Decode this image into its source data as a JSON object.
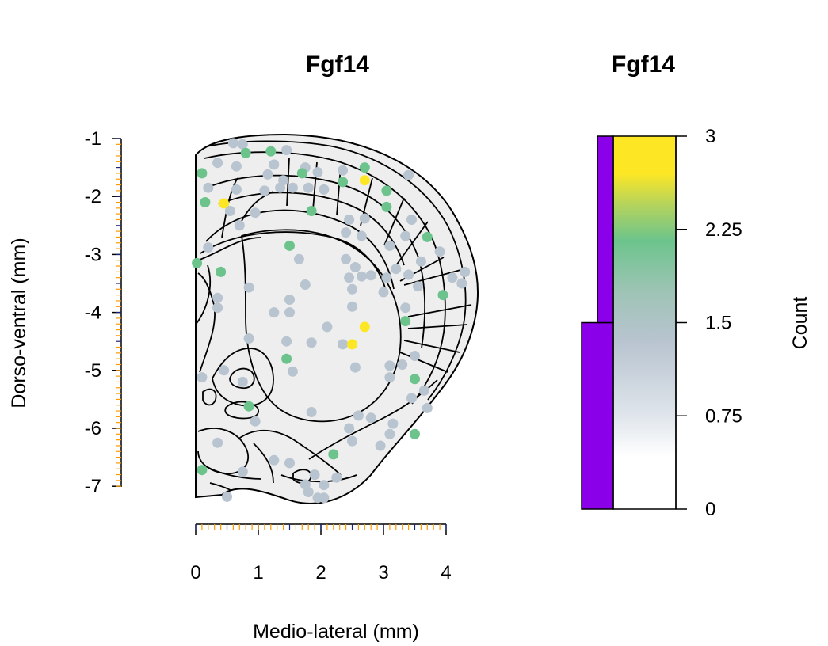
{
  "chart_data": [
    {
      "type": "scatter",
      "title": "Fgf14",
      "xlabel": "Medio-lateral (mm)",
      "ylabel": "Dorso-ventral (mm)",
      "xlim": [
        0,
        4
      ],
      "ylim": [
        -7.1,
        -1
      ],
      "x_ticks": [
        0,
        1,
        2,
        3,
        4
      ],
      "y_ticks": [
        -1,
        -2,
        -3,
        -4,
        -5,
        -6,
        -7
      ],
      "colors": {
        "count_0_to_1": "#b8c4d0",
        "count_2": "#6cc48c",
        "count_3": "#fde725",
        "section_fill": "#eeeeee"
      },
      "points": [
        {
          "x": 0.6,
          "y": -1.08,
          "count": 1
        },
        {
          "x": 0.75,
          "y": -1.1,
          "count": 1
        },
        {
          "x": 0.8,
          "y": -1.25,
          "count": 2
        },
        {
          "x": 1.2,
          "y": -1.22,
          "count": 2
        },
        {
          "x": 1.45,
          "y": -1.2,
          "count": 1
        },
        {
          "x": 0.35,
          "y": -1.42,
          "count": 1
        },
        {
          "x": 0.65,
          "y": -1.48,
          "count": 1
        },
        {
          "x": 1.25,
          "y": -1.45,
          "count": 1
        },
        {
          "x": 1.75,
          "y": -1.5,
          "count": 1
        },
        {
          "x": 1.95,
          "y": -1.58,
          "count": 1
        },
        {
          "x": 1.7,
          "y": -1.6,
          "count": 2
        },
        {
          "x": 0.1,
          "y": -1.6,
          "count": 2
        },
        {
          "x": 1.15,
          "y": -1.62,
          "count": 1
        },
        {
          "x": 1.4,
          "y": -1.72,
          "count": 1
        },
        {
          "x": 2.35,
          "y": -1.55,
          "count": 1
        },
        {
          "x": 2.7,
          "y": -1.5,
          "count": 2
        },
        {
          "x": 2.35,
          "y": -1.75,
          "count": 2
        },
        {
          "x": 2.7,
          "y": -1.72,
          "count": 3
        },
        {
          "x": 3.4,
          "y": -1.63,
          "count": 1
        },
        {
          "x": 0.2,
          "y": -1.85,
          "count": 1
        },
        {
          "x": 0.65,
          "y": -1.88,
          "count": 1
        },
        {
          "x": 1.1,
          "y": -1.9,
          "count": 1
        },
        {
          "x": 1.35,
          "y": -1.85,
          "count": 1
        },
        {
          "x": 1.55,
          "y": -1.85,
          "count": 1
        },
        {
          "x": 1.8,
          "y": -1.85,
          "count": 1
        },
        {
          "x": 2.05,
          "y": -1.88,
          "count": 1
        },
        {
          "x": 3.05,
          "y": -1.9,
          "count": 2
        },
        {
          "x": 0.15,
          "y": -2.1,
          "count": 2
        },
        {
          "x": 0.45,
          "y": -2.12,
          "count": 3
        },
        {
          "x": 1.85,
          "y": -2.25,
          "count": 2
        },
        {
          "x": 3.05,
          "y": -2.18,
          "count": 2
        },
        {
          "x": 0.55,
          "y": -2.25,
          "count": 1
        },
        {
          "x": 0.95,
          "y": -2.28,
          "count": 1
        },
        {
          "x": 2.45,
          "y": -2.4,
          "count": 1
        },
        {
          "x": 2.7,
          "y": -2.38,
          "count": 1
        },
        {
          "x": 3.45,
          "y": -2.4,
          "count": 1
        },
        {
          "x": 0.7,
          "y": -2.5,
          "count": 1
        },
        {
          "x": 2.4,
          "y": -2.62,
          "count": 1
        },
        {
          "x": 2.65,
          "y": -2.68,
          "count": 1
        },
        {
          "x": 3.35,
          "y": -2.68,
          "count": 1
        },
        {
          "x": 3.7,
          "y": -2.7,
          "count": 2
        },
        {
          "x": 3.1,
          "y": -2.85,
          "count": 1
        },
        {
          "x": 1.5,
          "y": -2.85,
          "count": 2
        },
        {
          "x": 0.2,
          "y": -2.88,
          "count": 1
        },
        {
          "x": 3.9,
          "y": -2.95,
          "count": 1
        },
        {
          "x": 1.65,
          "y": -3.08,
          "count": 1
        },
        {
          "x": 2.4,
          "y": -3.08,
          "count": 1
        },
        {
          "x": 3.6,
          "y": -3.12,
          "count": 1
        },
        {
          "x": 0.02,
          "y": -3.15,
          "count": 2
        },
        {
          "x": 0.4,
          "y": -3.3,
          "count": 2
        },
        {
          "x": 2.55,
          "y": -3.22,
          "count": 1
        },
        {
          "x": 3.2,
          "y": -3.25,
          "count": 1
        },
        {
          "x": 4.3,
          "y": -3.3,
          "count": 1
        },
        {
          "x": 2.45,
          "y": -3.4,
          "count": 1
        },
        {
          "x": 2.65,
          "y": -3.38,
          "count": 1
        },
        {
          "x": 2.8,
          "y": -3.36,
          "count": 1
        },
        {
          "x": 3.05,
          "y": -3.4,
          "count": 1
        },
        {
          "x": 3.4,
          "y": -3.35,
          "count": 1
        },
        {
          "x": 4.1,
          "y": -3.4,
          "count": 1
        },
        {
          "x": 4.25,
          "y": -3.5,
          "count": 1
        },
        {
          "x": 1.75,
          "y": -3.52,
          "count": 1
        },
        {
          "x": 0.85,
          "y": -3.57,
          "count": 1
        },
        {
          "x": 2.5,
          "y": -3.6,
          "count": 1
        },
        {
          "x": 3.55,
          "y": -3.55,
          "count": 1
        },
        {
          "x": 3.0,
          "y": -3.65,
          "count": 1
        },
        {
          "x": 3.95,
          "y": -3.7,
          "count": 2
        },
        {
          "x": 0.35,
          "y": -3.75,
          "count": 1
        },
        {
          "x": 1.5,
          "y": -3.78,
          "count": 1
        },
        {
          "x": 0.35,
          "y": -3.92,
          "count": 1
        },
        {
          "x": 2.5,
          "y": -3.9,
          "count": 1
        },
        {
          "x": 3.35,
          "y": -3.92,
          "count": 1
        },
        {
          "x": 1.25,
          "y": -4.0,
          "count": 1
        },
        {
          "x": 1.5,
          "y": -4.0,
          "count": 1
        },
        {
          "x": 3.35,
          "y": -4.15,
          "count": 2
        },
        {
          "x": 2.7,
          "y": -4.25,
          "count": 3
        },
        {
          "x": 2.1,
          "y": -4.25,
          "count": 1
        },
        {
          "x": 0.85,
          "y": -4.45,
          "count": 1
        },
        {
          "x": 1.45,
          "y": -4.5,
          "count": 1
        },
        {
          "x": 1.85,
          "y": -4.52,
          "count": 1
        },
        {
          "x": 2.35,
          "y": -4.55,
          "count": 1
        },
        {
          "x": 2.5,
          "y": -4.55,
          "count": 3
        },
        {
          "x": 3.5,
          "y": -4.75,
          "count": 1
        },
        {
          "x": 1.45,
          "y": -4.8,
          "count": 2
        },
        {
          "x": 3.1,
          "y": -4.92,
          "count": 1
        },
        {
          "x": 2.55,
          "y": -4.95,
          "count": 1
        },
        {
          "x": 3.3,
          "y": -4.9,
          "count": 1
        },
        {
          "x": 0.45,
          "y": -5.0,
          "count": 1
        },
        {
          "x": 1.55,
          "y": -5.02,
          "count": 1
        },
        {
          "x": 3.1,
          "y": -5.12,
          "count": 1
        },
        {
          "x": 3.5,
          "y": -5.15,
          "count": 2
        },
        {
          "x": 0.1,
          "y": -5.12,
          "count": 1
        },
        {
          "x": 0.75,
          "y": -5.2,
          "count": 1
        },
        {
          "x": 3.65,
          "y": -5.35,
          "count": 1
        },
        {
          "x": 3.45,
          "y": -5.48,
          "count": 1
        },
        {
          "x": 0.85,
          "y": -5.62,
          "count": 2
        },
        {
          "x": 3.7,
          "y": -5.65,
          "count": 1
        },
        {
          "x": 1.85,
          "y": -5.72,
          "count": 1
        },
        {
          "x": 2.6,
          "y": -5.78,
          "count": 1
        },
        {
          "x": 2.8,
          "y": -5.82,
          "count": 1
        },
        {
          "x": 0.95,
          "y": -5.88,
          "count": 1
        },
        {
          "x": 3.15,
          "y": -5.92,
          "count": 1
        },
        {
          "x": 2.45,
          "y": -6.0,
          "count": 1
        },
        {
          "x": 3.5,
          "y": -6.1,
          "count": 2
        },
        {
          "x": 3.1,
          "y": -6.1,
          "count": 1
        },
        {
          "x": 2.5,
          "y": -6.22,
          "count": 1
        },
        {
          "x": 0.35,
          "y": -6.25,
          "count": 1
        },
        {
          "x": 2.95,
          "y": -6.3,
          "count": 1
        },
        {
          "x": 2.2,
          "y": -6.45,
          "count": 2
        },
        {
          "x": 1.25,
          "y": -6.55,
          "count": 1
        },
        {
          "x": 1.5,
          "y": -6.6,
          "count": 1
        },
        {
          "x": 0.1,
          "y": -6.72,
          "count": 2
        },
        {
          "x": 0.75,
          "y": -6.75,
          "count": 1
        },
        {
          "x": 1.9,
          "y": -6.8,
          "count": 1
        },
        {
          "x": 2.25,
          "y": -6.85,
          "count": 1
        },
        {
          "x": 1.75,
          "y": -6.97,
          "count": 1
        },
        {
          "x": 2.05,
          "y": -6.98,
          "count": 1
        },
        {
          "x": 1.8,
          "y": -7.1,
          "count": 1
        },
        {
          "x": 1.95,
          "y": -7.2,
          "count": 1
        },
        {
          "x": 2.05,
          "y": -7.2,
          "count": 1
        },
        {
          "x": 0.5,
          "y": -7.18,
          "count": 1
        }
      ]
    },
    {
      "type": "bar",
      "title": "Fgf14",
      "ylabel": "Count",
      "ylim": [
        0,
        3
      ],
      "y_ticks": [
        "0",
        "0.75",
        "1.5",
        "2.25",
        "3"
      ],
      "colorbar_range": [
        0,
        3
      ],
      "colorbar_colors": [
        "#ffffff",
        "#dfe5eb",
        "#b8c4d0",
        "#8fc4a6",
        "#6cc48c",
        "#b8d45a",
        "#fde725"
      ],
      "histogram": {
        "color": "#8a00e8",
        "series": [
          {
            "count_lo": 0,
            "count_hi": 1.5,
            "value": 1.0
          },
          {
            "count_lo": 1.5,
            "count_hi": 3,
            "value": 0.5
          }
        ]
      }
    }
  ]
}
